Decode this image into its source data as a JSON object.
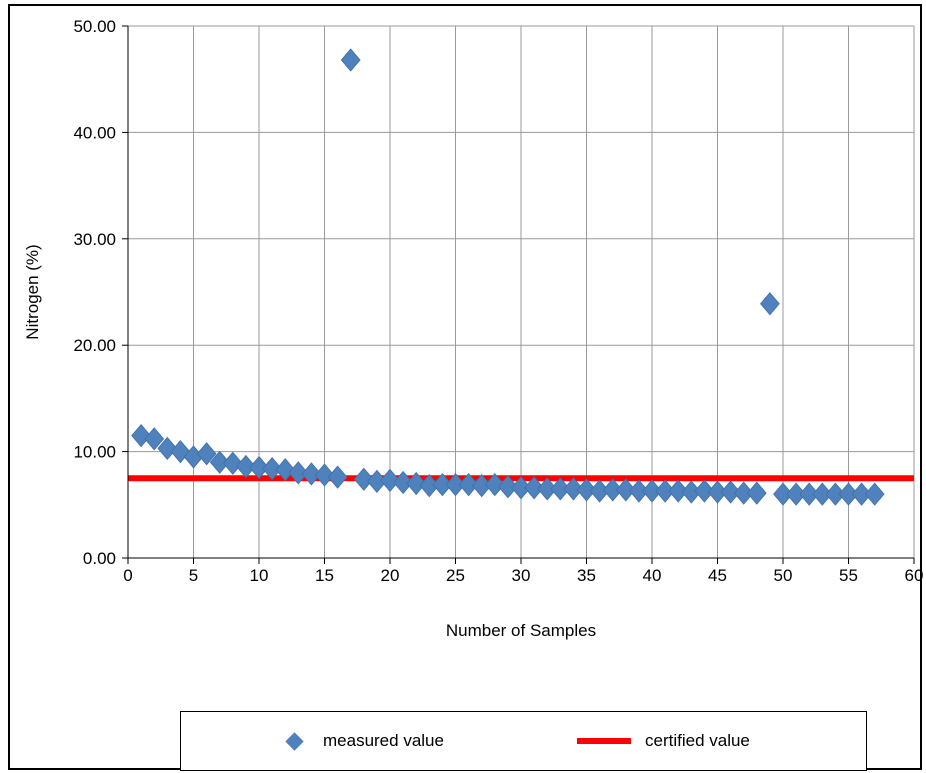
{
  "chart_data": {
    "type": "scatter",
    "title": "",
    "xlabel": "Number of Samples",
    "ylabel": "Nitrogen (%)",
    "xlim": [
      0,
      60
    ],
    "ylim": [
      0,
      50
    ],
    "x_ticks": [
      "0",
      "5",
      "10",
      "15",
      "20",
      "25",
      "30",
      "35",
      "40",
      "45",
      "50",
      "55",
      "60"
    ],
    "y_ticks": [
      "0.00",
      "10.00",
      "20.00",
      "30.00",
      "40.00",
      "50.00"
    ],
    "grid": true,
    "legend_position": "bottom",
    "series": [
      {
        "name": "measured value",
        "marker": "diamond",
        "color": "#4f81bd",
        "x": [
          1,
          2,
          3,
          4,
          5,
          6,
          7,
          8,
          9,
          10,
          11,
          12,
          13,
          14,
          15,
          16,
          17,
          18,
          19,
          20,
          21,
          22,
          23,
          24,
          25,
          26,
          27,
          28,
          29,
          30,
          31,
          32,
          33,
          34,
          35,
          36,
          37,
          38,
          39,
          40,
          41,
          42,
          43,
          44,
          45,
          46,
          47,
          48,
          49,
          50,
          51,
          52,
          53,
          54,
          55,
          56,
          57
        ],
        "y": [
          11.5,
          11.2,
          10.3,
          10.0,
          9.5,
          9.8,
          9.0,
          8.9,
          8.6,
          8.5,
          8.4,
          8.3,
          8.0,
          7.9,
          7.8,
          7.6,
          46.8,
          7.4,
          7.2,
          7.3,
          7.1,
          7.0,
          6.8,
          6.9,
          6.9,
          6.9,
          6.8,
          6.9,
          6.7,
          6.6,
          6.6,
          6.5,
          6.5,
          6.5,
          6.4,
          6.3,
          6.4,
          6.4,
          6.3,
          6.3,
          6.3,
          6.3,
          6.2,
          6.3,
          6.2,
          6.2,
          6.1,
          6.1,
          23.9,
          6.0,
          6.0,
          6.0,
          6.0,
          6.0,
          6.0,
          6.0,
          6.0
        ]
      },
      {
        "name": "certified value",
        "line": true,
        "color": "#ff0000",
        "value": 7.5
      }
    ]
  },
  "legend": {
    "measured_label": "measured value",
    "certified_label": "certified value"
  }
}
